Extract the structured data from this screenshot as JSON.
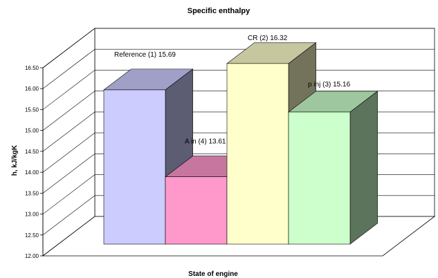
{
  "chart_data": {
    "type": "bar",
    "title": "Specific enthalpy",
    "xlabel": "State of engine",
    "ylabel": "h, kJ/kgK",
    "ylim": [
      12.0,
      16.5
    ],
    "y_ticks": [
      "12.00",
      "12.50",
      "13.00",
      "13.50",
      "14.00",
      "14.50",
      "15.00",
      "15.50",
      "16.00",
      "16.50"
    ],
    "grid": true,
    "legend": "none",
    "series": [
      {
        "label": "Reference (1) 15.69",
        "value": 15.69,
        "color": "#ccccff"
      },
      {
        "label": "A in (4) 13.61",
        "value": 13.61,
        "color": "#ff99cc"
      },
      {
        "label": "CR (2) 16.32",
        "value": 16.32,
        "color": "#ffffcc"
      },
      {
        "label": "p inj (3) 15.16",
        "value": 15.16,
        "color": "#ccffcc"
      }
    ]
  }
}
